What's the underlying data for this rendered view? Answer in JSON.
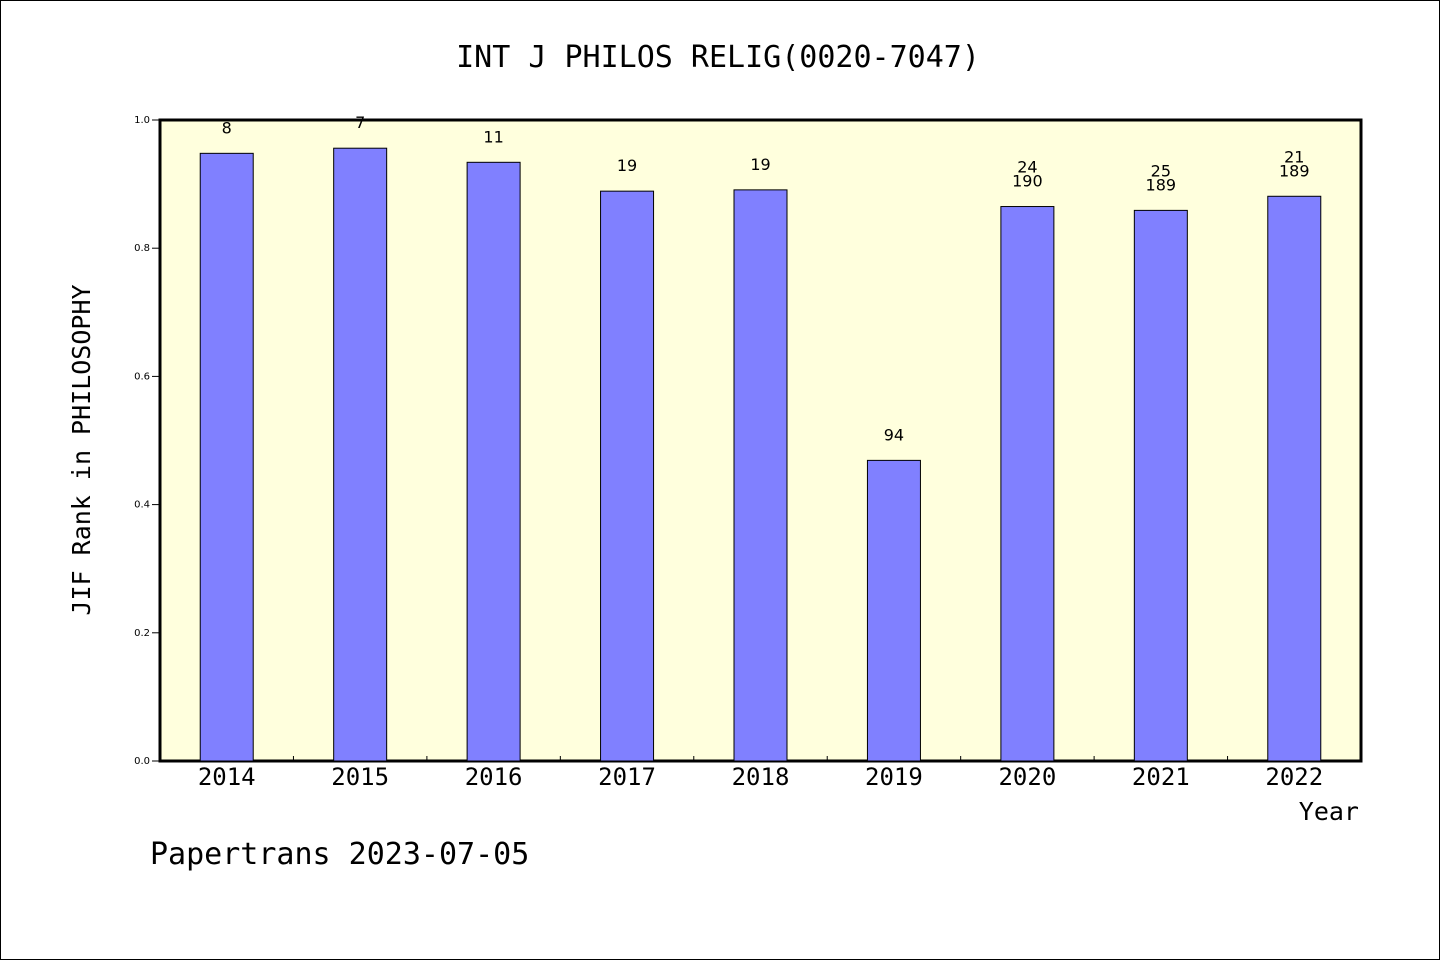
{
  "chart_data": {
    "type": "bar",
    "title": "INT J PHILOS RELIG(0020-7047)",
    "ylabel": "JIF Rank in PHILOSOPHY",
    "xlabel": "Year",
    "ylim": [
      0,
      1.0
    ],
    "yticks": [
      "0.0",
      "0.2",
      "0.4",
      "0.6",
      "0.8",
      "1.0"
    ],
    "categories": [
      "2014",
      "2015",
      "2016",
      "2017",
      "2018",
      "2019",
      "2020",
      "2021",
      "2022"
    ],
    "values": [
      0.948,
      0.956,
      0.934,
      0.889,
      0.891,
      0.469,
      0.865,
      0.859,
      0.881
    ],
    "labels": [
      [
        "8"
      ],
      [
        "7"
      ],
      [
        "11"
      ],
      [
        "19"
      ],
      [
        "19"
      ],
      [
        "94"
      ],
      [
        "24",
        "190"
      ],
      [
        "25",
        "189"
      ],
      [
        "21",
        "189"
      ]
    ],
    "colors": {
      "plot_background": "#ffffdd",
      "bar_fill": "#8080ff",
      "bar_stroke": "#000000"
    },
    "grid": false,
    "legend": "none"
  },
  "footer": "Papertrans 2023-07-05"
}
